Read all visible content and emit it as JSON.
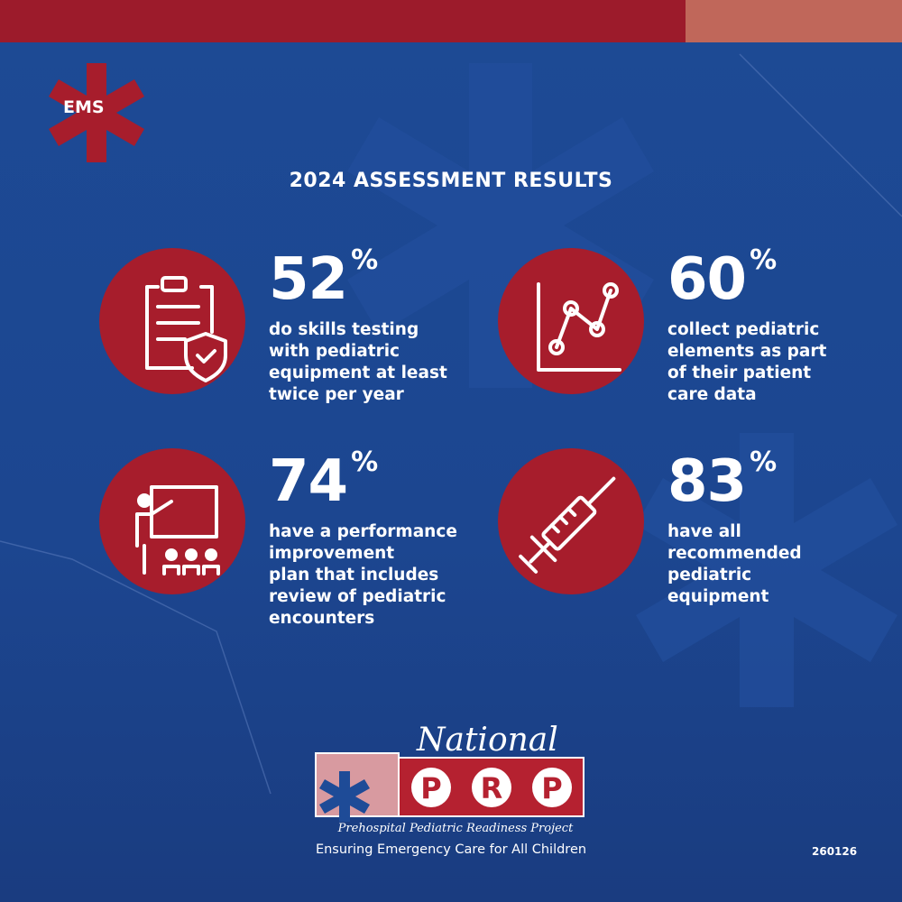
{
  "badge": "EMS",
  "title": "2024 ASSESSMENT RESULTS",
  "stats": [
    {
      "value": "52",
      "unit": "%",
      "lines": [
        "do skills testing",
        "with pediatric",
        "equipment at least",
        "twice per year"
      ]
    },
    {
      "value": "60",
      "unit": "%",
      "lines": [
        "collect pediatric",
        "elements as part",
        "of their patient",
        "care data"
      ]
    },
    {
      "value": "74",
      "unit": "%",
      "lines": [
        "have a performance",
        "improvement",
        "plan that includes",
        "review of pediatric",
        "encounters"
      ]
    },
    {
      "value": "83",
      "unit": "%",
      "lines": [
        "have all",
        "recommended",
        "pediatric",
        "equipment"
      ]
    }
  ],
  "logo": {
    "script": "National",
    "letters": [
      "P",
      "R",
      "P"
    ],
    "project": "Prehospital Pediatric Readiness Project",
    "tagline": "Ensuring Emergency Care for All Children"
  },
  "code": "260126"
}
